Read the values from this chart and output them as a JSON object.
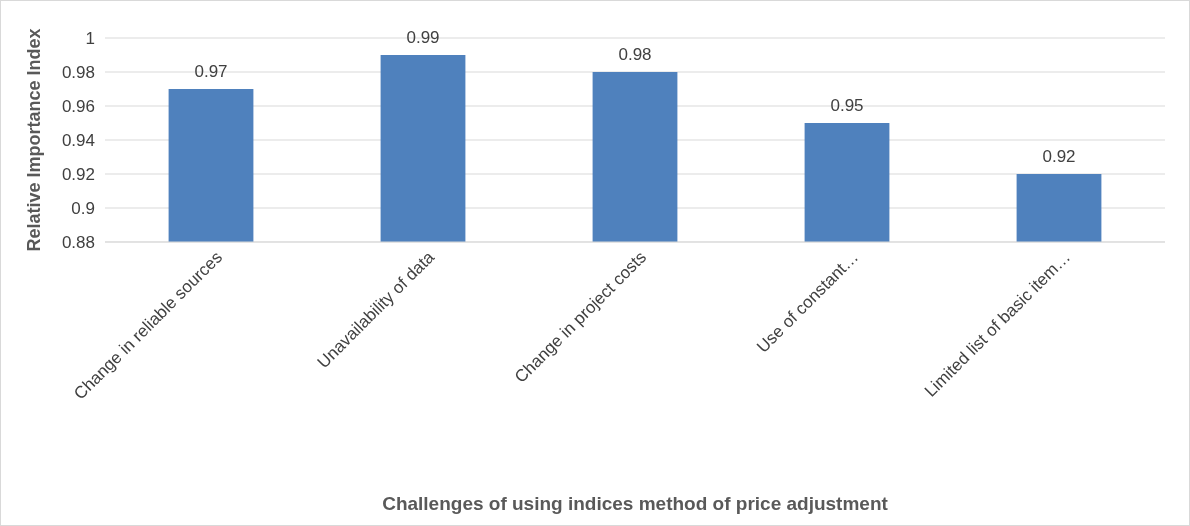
{
  "chart_data": {
    "type": "bar",
    "xlabel": "Challenges of using indices method of price adjustment",
    "ylabel": "Relative Importance Index",
    "categories": [
      "Change in reliable sources",
      "Unavailability of data",
      "Change in project costs",
      "Use of constant…",
      "Limited list of basic item…"
    ],
    "values": [
      0.97,
      0.99,
      0.98,
      0.95,
      0.92
    ],
    "color": "#4f81bd",
    "ylim": [
      0.88,
      1
    ],
    "yticks": [
      0.88,
      0.9,
      0.92,
      0.94,
      0.96,
      0.98,
      1
    ],
    "grid": "y",
    "data_labels": true
  }
}
